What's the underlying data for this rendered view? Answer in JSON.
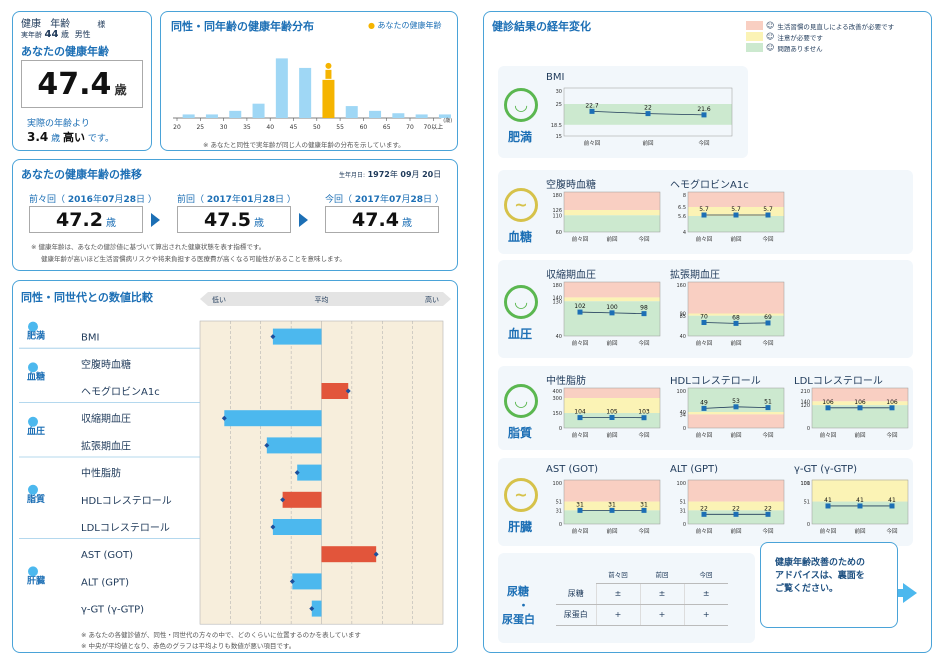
{
  "header": {
    "label1": "健康",
    "label2": "年齢",
    "sama": "様",
    "age_label": "実年齢",
    "age": "44",
    "age_unit": "歳",
    "sex": "男性"
  },
  "health_age": {
    "title": "あなたの健康年齢",
    "value": "47.4",
    "unit": "歳",
    "diff_pre": "実際の年齢より",
    "diff_value": "3.4",
    "diff_unit": "歳",
    "diff_word": "高い",
    "diff_post": "です。"
  },
  "distribution": {
    "title": "同性・同年齢の健康年齢分布",
    "legend": "あなたの健康年齢",
    "ticks": [
      "20",
      "25",
      "30",
      "35",
      "40",
      "45",
      "50",
      "55",
      "60",
      "65",
      "70",
      "70以上"
    ],
    "tick_unit": "(歳)",
    "values": [
      0.3,
      0.3,
      0.6,
      1.2,
      5.0,
      4.2,
      3.2,
      1.0,
      0.6,
      0.4,
      0.3,
      0.3
    ],
    "highlight_index": 6,
    "note": "※ あなたと同性で実年齢が同じ人の健康年齢の分布を示しています。"
  },
  "trend": {
    "title": "あなたの健康年齢の推移",
    "dob_label": "生年月日:",
    "dob_y": "1972",
    "dob_yu": "年",
    "dob_m": "09",
    "dob_mu": "月",
    "dob_d": "20",
    "dob_du": "日",
    "periods": [
      {
        "label": "前々回",
        "y": "2016",
        "m": "07",
        "d": "28",
        "value": "47.2"
      },
      {
        "label": "前回",
        "y": "2017",
        "m": "01",
        "d": "28",
        "value": "47.5"
      },
      {
        "label": "今回",
        "y": "2017",
        "m": "07",
        "d": "28",
        "value": "47.4"
      }
    ],
    "unit": "歳",
    "y_unit": "年",
    "m_unit": "月",
    "d_unit": "日",
    "note1": "※ 健康年齢は、あなたの健診値に基づいて算出された健康状態を表す指標です。",
    "note2": "健康年齢が高いほど生活習慣病リスクや将来負担する医療費が高くなる可能性があることを意味します。"
  },
  "compare": {
    "title": "同性・同世代との数値比較",
    "low": "低い",
    "avg": "平均",
    "high": "高い",
    "groups": [
      {
        "name": "肥満",
        "items": [
          {
            "label": "BMI",
            "value": -0.4,
            "color": "#4cb8ee"
          }
        ]
      },
      {
        "name": "血糖",
        "items": [
          {
            "label": "空腹時血糖",
            "value": 0,
            "color": "#4cb8ee"
          },
          {
            "label": "ヘモグロビンA1c",
            "value": 0.22,
            "color": "#e2553b"
          }
        ]
      },
      {
        "name": "血圧",
        "items": [
          {
            "label": "収縮期血圧",
            "value": -0.8,
            "color": "#4cb8ee"
          },
          {
            "label": "拡張期血圧",
            "value": -0.45,
            "color": "#4cb8ee"
          }
        ]
      },
      {
        "name": "脂質",
        "items": [
          {
            "label": "中性脂肪",
            "value": -0.2,
            "color": "#4cb8ee"
          },
          {
            "label": "HDLコレステロール",
            "value": -0.32,
            "color": "#e2553b"
          },
          {
            "label": "LDLコレステロール",
            "value": -0.4,
            "color": "#4cb8ee"
          }
        ]
      },
      {
        "name": "肝臓",
        "items": [
          {
            "label": "AST (GOT)",
            "value": 0.45,
            "color": "#e2553b"
          },
          {
            "label": "ALT (GPT)",
            "value": -0.24,
            "color": "#4cb8ee"
          },
          {
            "label": "γ-GT (γ-GTP)",
            "value": -0.08,
            "color": "#4cb8ee"
          }
        ]
      }
    ],
    "note1": "※ あなたの各健診値が、同性・同世代の方々の中で、どのくらいに位置するのかを表しています",
    "note2": "※ 中央が平均値となり、赤色のグラフは平均よりも数値が悪い項目です。"
  },
  "results": {
    "title": "健診結果の経年変化",
    "legend": [
      "生活習慣の見直しによる改善が必要です",
      "注意が必要です",
      "問題ありません"
    ],
    "x_labels": [
      "前々回",
      "前回",
      "今回"
    ],
    "sections": [
      {
        "name": "肥満",
        "mood": "good",
        "charts": [
          {
            "title": "BMI",
            "values": [
              22.7,
              22,
              21.6
            ],
            "ymin": 15,
            "ymax": 30,
            "ticks": [
              "30",
              "25",
              "18.5",
              "15"
            ],
            "bands": [
              "green"
            ]
          }
        ]
      },
      {
        "name": "血糖",
        "mood": "warn",
        "charts": [
          {
            "title": "空腹時血糖",
            "values": [],
            "ymin": 60,
            "ymax": 180,
            "ticks": [
              "180",
              "126",
              "110",
              "60"
            ],
            "bands": [
              "red",
              "yellow",
              "green"
            ]
          },
          {
            "title": "ヘモグロビンA1c",
            "values": [
              5.7,
              5.7,
              5.7
            ],
            "ymin": 4,
            "ymax": 8,
            "ticks": [
              "8",
              "6.5",
              "5.6",
              "4"
            ],
            "bands": [
              "red",
              "yellow",
              "green"
            ]
          }
        ]
      },
      {
        "name": "血圧",
        "mood": "good",
        "charts": [
          {
            "title": "収縮期血圧",
            "values": [
              102,
              100,
              98
            ],
            "ymin": 40,
            "ymax": 180,
            "ticks": [
              "180",
              "140",
              "130",
              "40"
            ],
            "bands": [
              "red",
              "yellow",
              "green"
            ]
          },
          {
            "title": "拡張期血圧",
            "values": [
              70,
              68,
              69
            ],
            "ymin": 40,
            "ymax": 160,
            "ticks": [
              "160",
              "90",
              "85",
              "40"
            ],
            "bands": [
              "red",
              "yellow",
              "green"
            ]
          }
        ]
      },
      {
        "name": "脂質",
        "mood": "good",
        "charts": [
          {
            "title": "中性脂肪",
            "values": [
              104,
              105,
              103
            ],
            "ymin": 0,
            "ymax": 400,
            "ticks": [
              "400",
              "300",
              "150",
              "0"
            ],
            "bands": [
              "red",
              "yellow",
              "green"
            ]
          },
          {
            "title": "HDLコレステロール",
            "values": [
              49,
              53,
              51
            ],
            "ymin": 0,
            "ymax": 100,
            "ticks": [
              "100",
              "40",
              "34",
              "0"
            ],
            "bands": [
              "green",
              "yellow",
              "red"
            ]
          },
          {
            "title": "LDLコレステロール",
            "values": [
              106,
              106,
              106
            ],
            "ymin": 0,
            "ymax": 210,
            "ticks": [
              "210",
              "140",
              "120",
              "0"
            ],
            "bands": [
              "red",
              "yellow",
              "green"
            ]
          }
        ]
      },
      {
        "name": "肝臓",
        "mood": "warn",
        "charts": [
          {
            "title": "AST (GOT)",
            "values": [
              31,
              31,
              31
            ],
            "ymin": 0,
            "ymax": 100,
            "ticks": [
              "100",
              "51",
              "31",
              "0"
            ],
            "bands": [
              "red",
              "yellow",
              "green"
            ]
          },
          {
            "title": "ALT (GPT)",
            "values": [
              22,
              22,
              22
            ],
            "ymin": 0,
            "ymax": 100,
            "ticks": [
              "100",
              "51",
              "31",
              "0"
            ],
            "bands": [
              "red",
              "yellow",
              "green"
            ]
          },
          {
            "title": "γ-GT (γ-GTP)",
            "values": [
              41,
              41,
              41
            ],
            "ymin": 0,
            "ymax": 100,
            "ticks": [
              "100",
              "101",
              "51",
              "0"
            ],
            "bands": [
              "red",
              "yellow",
              "green"
            ]
          }
        ]
      }
    ],
    "urine": {
      "name1": "尿糖",
      "dot": "・",
      "name2": "尿蛋白",
      "cols": [
        "前々回",
        "前回",
        "今回"
      ],
      "rows": [
        {
          "label": "尿糖",
          "vals": [
            "±",
            "±",
            "±"
          ]
        },
        {
          "label": "尿蛋白",
          "vals": [
            "+",
            "+",
            "+"
          ]
        }
      ]
    }
  },
  "advice": {
    "line1": "健康年齢改善のための",
    "line2": "アドバイスは、裏面を",
    "line3": "ご覧ください。"
  }
}
